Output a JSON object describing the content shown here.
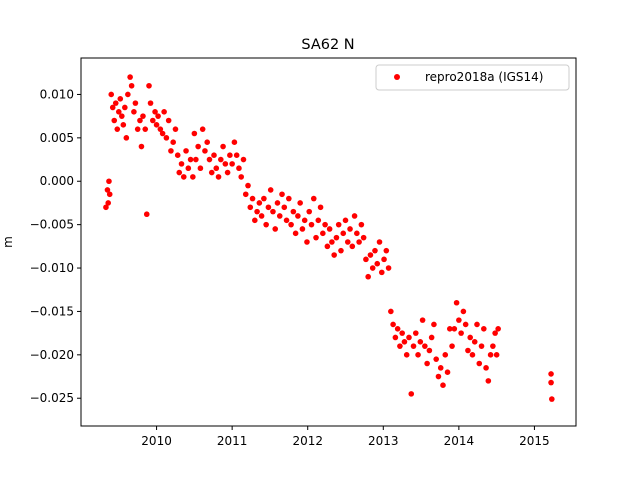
{
  "chart_data": {
    "type": "scatter",
    "title": "SA62 N",
    "xlabel": "",
    "ylabel": "m",
    "xlim": [
      2009.0,
      2015.55
    ],
    "ylim": [
      -0.0282,
      0.0142
    ],
    "x_ticks": [
      2010,
      2011,
      2012,
      2013,
      2014,
      2015
    ],
    "y_ticks": [
      0.01,
      0.005,
      0.0,
      -0.005,
      -0.01,
      -0.015,
      -0.02,
      -0.025
    ],
    "y_tick_labels": [
      "0.010",
      "0.005",
      "0.000",
      "−0.005",
      "−0.010",
      "−0.015",
      "−0.020",
      "−0.025"
    ],
    "legend": {
      "placement": "top-right",
      "entries": [
        "repro2018a (IGS14)"
      ]
    },
    "grid": false,
    "series": [
      {
        "name": "repro2018a (IGS14)",
        "color": "#ff0000",
        "marker": "circle",
        "points": [
          [
            2009.33,
            -0.003
          ],
          [
            2009.35,
            -0.001
          ],
          [
            2009.36,
            -0.0025
          ],
          [
            2009.37,
            0.0
          ],
          [
            2009.38,
            -0.0015
          ],
          [
            2009.4,
            0.01
          ],
          [
            2009.42,
            0.0085
          ],
          [
            2009.44,
            0.007
          ],
          [
            2009.46,
            0.009
          ],
          [
            2009.48,
            0.006
          ],
          [
            2009.5,
            0.008
          ],
          [
            2009.52,
            0.0095
          ],
          [
            2009.54,
            0.0075
          ],
          [
            2009.56,
            0.0065
          ],
          [
            2009.58,
            0.0085
          ],
          [
            2009.6,
            0.005
          ],
          [
            2009.62,
            0.01
          ],
          [
            2009.65,
            0.012
          ],
          [
            2009.67,
            0.011
          ],
          [
            2009.7,
            0.008
          ],
          [
            2009.72,
            0.009
          ],
          [
            2009.75,
            0.006
          ],
          [
            2009.78,
            0.007
          ],
          [
            2009.8,
            0.004
          ],
          [
            2009.82,
            0.0075
          ],
          [
            2009.85,
            0.006
          ],
          [
            2009.87,
            -0.0038
          ],
          [
            2009.9,
            0.011
          ],
          [
            2009.92,
            0.009
          ],
          [
            2009.95,
            0.007
          ],
          [
            2009.98,
            0.008
          ],
          [
            2010.0,
            0.0065
          ],
          [
            2010.02,
            0.0075
          ],
          [
            2010.05,
            0.006
          ],
          [
            2010.08,
            0.0055
          ],
          [
            2010.1,
            0.008
          ],
          [
            2010.13,
            0.005
          ],
          [
            2010.16,
            0.007
          ],
          [
            2010.19,
            0.0035
          ],
          [
            2010.22,
            0.0045
          ],
          [
            2010.25,
            0.006
          ],
          [
            2010.28,
            0.003
          ],
          [
            2010.3,
            0.001
          ],
          [
            2010.33,
            0.002
          ],
          [
            2010.36,
            0.0005
          ],
          [
            2010.39,
            0.0035
          ],
          [
            2010.42,
            0.0015
          ],
          [
            2010.45,
            0.0025
          ],
          [
            2010.48,
            0.0005
          ],
          [
            2010.5,
            0.0055
          ],
          [
            2010.52,
            0.0025
          ],
          [
            2010.55,
            0.004
          ],
          [
            2010.58,
            0.0015
          ],
          [
            2010.61,
            0.006
          ],
          [
            2010.64,
            0.0035
          ],
          [
            2010.67,
            0.0045
          ],
          [
            2010.7,
            0.0025
          ],
          [
            2010.73,
            0.001
          ],
          [
            2010.76,
            0.003
          ],
          [
            2010.79,
            0.0015
          ],
          [
            2010.82,
            0.0005
          ],
          [
            2010.85,
            0.0025
          ],
          [
            2010.88,
            0.004
          ],
          [
            2010.91,
            0.002
          ],
          [
            2010.94,
            0.001
          ],
          [
            2010.97,
            0.003
          ],
          [
            2011.0,
            0.002
          ],
          [
            2011.03,
            0.0045
          ],
          [
            2011.06,
            0.003
          ],
          [
            2011.09,
            0.0015
          ],
          [
            2011.12,
            0.0005
          ],
          [
            2011.15,
            0.0025
          ],
          [
            2011.18,
            -0.0015
          ],
          [
            2011.21,
            -0.0005
          ],
          [
            2011.24,
            -0.003
          ],
          [
            2011.27,
            -0.002
          ],
          [
            2011.3,
            -0.0045
          ],
          [
            2011.33,
            -0.0035
          ],
          [
            2011.36,
            -0.0025
          ],
          [
            2011.39,
            -0.004
          ],
          [
            2011.42,
            -0.002
          ],
          [
            2011.45,
            -0.005
          ],
          [
            2011.48,
            -0.003
          ],
          [
            2011.51,
            -0.001
          ],
          [
            2011.54,
            -0.0035
          ],
          [
            2011.57,
            -0.0055
          ],
          [
            2011.6,
            -0.0025
          ],
          [
            2011.63,
            -0.004
          ],
          [
            2011.66,
            -0.0015
          ],
          [
            2011.69,
            -0.003
          ],
          [
            2011.72,
            -0.0045
          ],
          [
            2011.75,
            -0.002
          ],
          [
            2011.78,
            -0.005
          ],
          [
            2011.81,
            -0.0035
          ],
          [
            2011.84,
            -0.006
          ],
          [
            2011.87,
            -0.004
          ],
          [
            2011.9,
            -0.0025
          ],
          [
            2011.93,
            -0.0055
          ],
          [
            2011.96,
            -0.0045
          ],
          [
            2011.99,
            -0.007
          ],
          [
            2012.02,
            -0.0035
          ],
          [
            2012.05,
            -0.005
          ],
          [
            2012.08,
            -0.002
          ],
          [
            2012.11,
            -0.0065
          ],
          [
            2012.14,
            -0.0045
          ],
          [
            2012.17,
            -0.003
          ],
          [
            2012.2,
            -0.006
          ],
          [
            2012.23,
            -0.005
          ],
          [
            2012.26,
            -0.0075
          ],
          [
            2012.29,
            -0.0055
          ],
          [
            2012.32,
            -0.007
          ],
          [
            2012.35,
            -0.0085
          ],
          [
            2012.38,
            -0.0065
          ],
          [
            2012.41,
            -0.005
          ],
          [
            2012.44,
            -0.008
          ],
          [
            2012.47,
            -0.006
          ],
          [
            2012.5,
            -0.0045
          ],
          [
            2012.53,
            -0.007
          ],
          [
            2012.56,
            -0.0055
          ],
          [
            2012.59,
            -0.0075
          ],
          [
            2012.62,
            -0.004
          ],
          [
            2012.65,
            -0.006
          ],
          [
            2012.68,
            -0.007
          ],
          [
            2012.71,
            -0.005
          ],
          [
            2012.74,
            -0.0065
          ],
          [
            2012.77,
            -0.009
          ],
          [
            2012.8,
            -0.011
          ],
          [
            2012.83,
            -0.0085
          ],
          [
            2012.86,
            -0.01
          ],
          [
            2012.89,
            -0.008
          ],
          [
            2012.92,
            -0.0095
          ],
          [
            2012.95,
            -0.007
          ],
          [
            2012.98,
            -0.0105
          ],
          [
            2013.01,
            -0.009
          ],
          [
            2013.04,
            -0.008
          ],
          [
            2013.07,
            -0.01
          ],
          [
            2013.1,
            -0.015
          ],
          [
            2013.13,
            -0.0165
          ],
          [
            2013.16,
            -0.018
          ],
          [
            2013.19,
            -0.017
          ],
          [
            2013.22,
            -0.019
          ],
          [
            2013.25,
            -0.0175
          ],
          [
            2013.28,
            -0.0185
          ],
          [
            2013.31,
            -0.02
          ],
          [
            2013.34,
            -0.018
          ],
          [
            2013.37,
            -0.0245
          ],
          [
            2013.4,
            -0.019
          ],
          [
            2013.43,
            -0.0175
          ],
          [
            2013.46,
            -0.02
          ],
          [
            2013.49,
            -0.0185
          ],
          [
            2013.52,
            -0.016
          ],
          [
            2013.55,
            -0.019
          ],
          [
            2013.58,
            -0.021
          ],
          [
            2013.61,
            -0.0195
          ],
          [
            2013.64,
            -0.018
          ],
          [
            2013.67,
            -0.0165
          ],
          [
            2013.7,
            -0.0205
          ],
          [
            2013.73,
            -0.0225
          ],
          [
            2013.76,
            -0.0215
          ],
          [
            2013.79,
            -0.0235
          ],
          [
            2013.82,
            -0.02
          ],
          [
            2013.85,
            -0.022
          ],
          [
            2013.88,
            -0.017
          ],
          [
            2013.91,
            -0.019
          ],
          [
            2013.94,
            -0.017
          ],
          [
            2013.97,
            -0.014
          ],
          [
            2014.0,
            -0.016
          ],
          [
            2014.03,
            -0.0175
          ],
          [
            2014.06,
            -0.015
          ],
          [
            2014.09,
            -0.0165
          ],
          [
            2014.12,
            -0.0195
          ],
          [
            2014.15,
            -0.018
          ],
          [
            2014.18,
            -0.02
          ],
          [
            2014.21,
            -0.0185
          ],
          [
            2014.24,
            -0.0165
          ],
          [
            2014.27,
            -0.021
          ],
          [
            2014.3,
            -0.019
          ],
          [
            2014.33,
            -0.017
          ],
          [
            2014.36,
            -0.0215
          ],
          [
            2014.39,
            -0.023
          ],
          [
            2014.42,
            -0.02
          ],
          [
            2014.45,
            -0.019
          ],
          [
            2014.48,
            -0.0175
          ],
          [
            2014.5,
            -0.02
          ],
          [
            2014.52,
            -0.017
          ],
          [
            2015.22,
            -0.0222
          ],
          [
            2015.22,
            -0.0232
          ],
          [
            2015.23,
            -0.0251
          ]
        ]
      }
    ]
  }
}
